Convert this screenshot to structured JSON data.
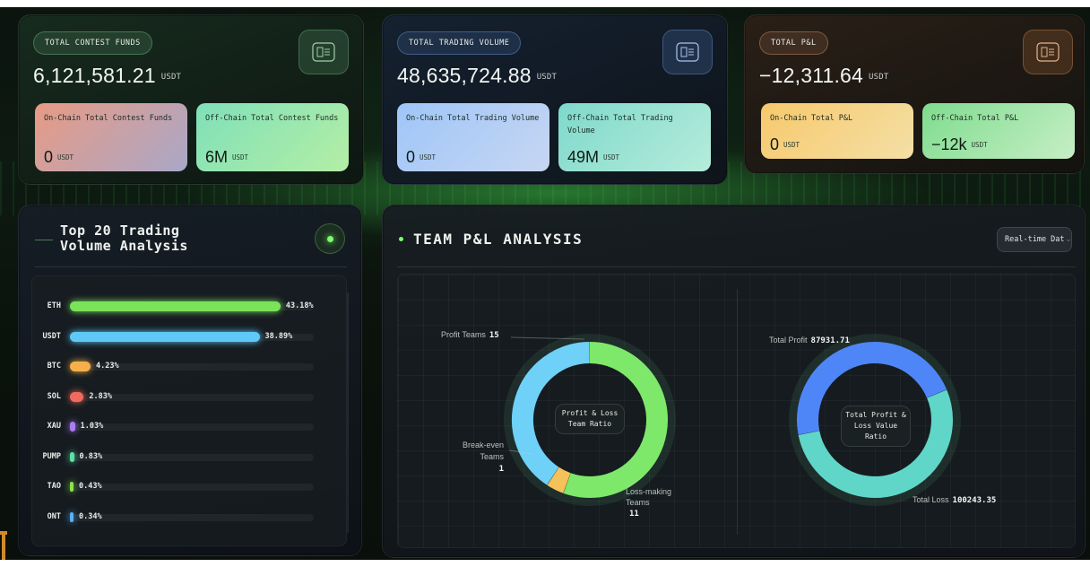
{
  "cards": [
    {
      "pill": "TOTAL CONTEST FUNDS",
      "value": "6,121,581.21",
      "unit": "USDT",
      "sub": [
        {
          "label": "On-Chain Total Contest Funds",
          "value": "0",
          "unit": "USDT"
        },
        {
          "label": "Off-Chain Total Contest Funds",
          "value": "6M",
          "unit": "USDT"
        }
      ]
    },
    {
      "pill": "TOTAL TRADING VOLUME",
      "value": "48,635,724.88",
      "unit": "USDT",
      "sub": [
        {
          "label": "On-Chain Total Trading Volume",
          "value": "0",
          "unit": "USDT"
        },
        {
          "label": "Off-Chain Total Trading Volume",
          "value": "49M",
          "unit": "USDT"
        }
      ]
    },
    {
      "pill": "TOTAL P&L",
      "value": "−12,311.64",
      "unit": "USDT",
      "sub": [
        {
          "label": "On-Chain Total P&L",
          "value": "0",
          "unit": "USDT"
        },
        {
          "label": "Off-Chain Total P&L",
          "value": "−12k",
          "unit": "USDT"
        }
      ]
    }
  ],
  "volume_panel": {
    "title": "Top 20 Trading Volume Analysis",
    "rows": [
      {
        "label": "ETH",
        "value": "43.18%",
        "pct": 43.18,
        "color": "#7be35a"
      },
      {
        "label": "USDT",
        "value": "38.89%",
        "pct": 38.89,
        "color": "#5ec8f7"
      },
      {
        "label": "BTC",
        "value": "4.23%",
        "pct": 4.23,
        "color": "#f5b04c"
      },
      {
        "label": "SOL",
        "value": "2.83%",
        "pct": 2.83,
        "color": "#f06b5e"
      },
      {
        "label": "XAU",
        "value": "1.03%",
        "pct": 1.03,
        "color": "#a97ef0"
      },
      {
        "label": "PUMP",
        "value": "0.83%",
        "pct": 0.83,
        "color": "#5de0a6"
      },
      {
        "label": "TAO",
        "value": "0.43%",
        "pct": 0.43,
        "color": "#8de24c"
      },
      {
        "label": "ONT",
        "value": "0.34%",
        "pct": 0.34,
        "color": "#5ab0f0"
      }
    ]
  },
  "team_panel": {
    "title": "TEAM P&L ANALYSIS",
    "select_value": "Real-time Dat",
    "team_ratio": {
      "center": "Profit & Loss Team Ratio",
      "profit_label": "Profit Teams",
      "profit_value": "15",
      "breakeven_label": "Break-even Teams",
      "breakeven_value": "1",
      "loss_label": "Loss-making Teams",
      "loss_value": "11"
    },
    "value_ratio": {
      "center": "Total Profit & Loss Value Ratio",
      "profit_label": "Total Profit",
      "profit_value": "87931.71",
      "loss_label": "Total Loss",
      "loss_value": "100243.35"
    }
  },
  "chart_data": [
    {
      "type": "bar",
      "title": "Top 20 Trading Volume Analysis",
      "categories": [
        "ETH",
        "USDT",
        "BTC",
        "SOL",
        "XAU",
        "PUMP",
        "TAO",
        "ONT"
      ],
      "values": [
        43.18,
        38.89,
        4.23,
        2.83,
        1.03,
        0.83,
        0.43,
        0.34
      ],
      "orientation": "horizontal"
    },
    {
      "type": "pie",
      "title": "Profit & Loss Team Ratio",
      "categories": [
        "Profit Teams",
        "Break-even Teams",
        "Loss-making Teams"
      ],
      "values": [
        15,
        1,
        11
      ],
      "colors": [
        "#7ee86a",
        "#f5c15a",
        "#6fd0f8"
      ]
    },
    {
      "type": "pie",
      "title": "Total Profit & Loss Value Ratio",
      "categories": [
        "Total Profit",
        "Total Loss"
      ],
      "values": [
        87931.71,
        100243.35
      ],
      "colors": [
        "#4f86f7",
        "#5fd6c8"
      ]
    }
  ]
}
